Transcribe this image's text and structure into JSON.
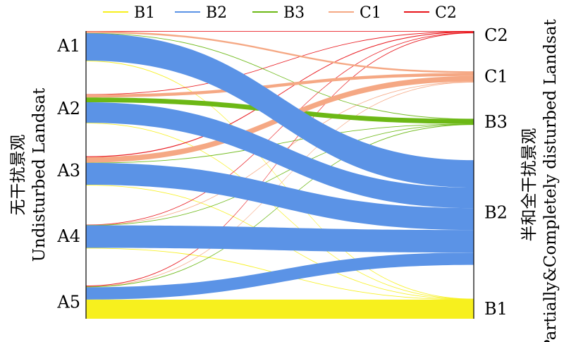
{
  "chart_data": {
    "type": "sankey",
    "legend": {
      "placement": "top",
      "entries": [
        {
          "key": "B1",
          "label": "B1",
          "color": "#f7f01e"
        },
        {
          "key": "B2",
          "label": "B2",
          "color": "#5b93e6"
        },
        {
          "key": "B3",
          "label": "B3",
          "color": "#6cb815"
        },
        {
          "key": "C1",
          "label": "C1",
          "color": "#f5a884"
        },
        {
          "key": "C2",
          "label": "C2",
          "color": "#e8141a"
        }
      ]
    },
    "left_axis_title": {
      "line1": "无干扰景观",
      "line2": "Undisturbed Landsat"
    },
    "right_axis_title": {
      "line1": "半和全干扰景观",
      "line2": "Partially&Completely disturbed Landsat"
    },
    "left_nodes": [
      "A1",
      "A2",
      "A3",
      "A4",
      "A5"
    ],
    "right_nodes": [
      "C2",
      "C1",
      "B3",
      "B2",
      "B1"
    ],
    "flows": [
      {
        "from": "A1",
        "to": "C2",
        "value": 0.4
      },
      {
        "from": "A1",
        "to": "C1",
        "value": 2.5
      },
      {
        "from": "A1",
        "to": "B2",
        "value": 40
      },
      {
        "from": "A1",
        "to": "B1",
        "value": 0.3
      },
      {
        "from": "A1",
        "to": "B3",
        "value": 0.4
      },
      {
        "from": "A2",
        "to": "C2",
        "value": 0.3
      },
      {
        "from": "A2",
        "to": "C1",
        "value": 4.5
      },
      {
        "from": "A2",
        "to": "B3",
        "value": 7
      },
      {
        "from": "A2",
        "to": "B2",
        "value": 30
      },
      {
        "from": "A2",
        "to": "B1",
        "value": 0.3
      },
      {
        "from": "A3",
        "to": "C2",
        "value": 1.2
      },
      {
        "from": "A3",
        "to": "C1",
        "value": 8
      },
      {
        "from": "A3",
        "to": "B3",
        "value": 0.4
      },
      {
        "from": "A3",
        "to": "B2",
        "value": 32
      },
      {
        "from": "A3",
        "to": "B1",
        "value": 0.3
      },
      {
        "from": "A4",
        "to": "C2",
        "value": 0.3
      },
      {
        "from": "A4",
        "to": "C1",
        "value": 0.3
      },
      {
        "from": "A4",
        "to": "B3",
        "value": 0.3
      },
      {
        "from": "A4",
        "to": "B2",
        "value": 33
      },
      {
        "from": "A4",
        "to": "B1",
        "value": 0.3
      },
      {
        "from": "A5",
        "to": "C2",
        "value": 1
      },
      {
        "from": "A5",
        "to": "C1",
        "value": 0.4
      },
      {
        "from": "A5",
        "to": "B3",
        "value": 1
      },
      {
        "from": "A5",
        "to": "B2",
        "value": 18
      },
      {
        "from": "A5",
        "to": "B1",
        "value": 28
      }
    ]
  }
}
